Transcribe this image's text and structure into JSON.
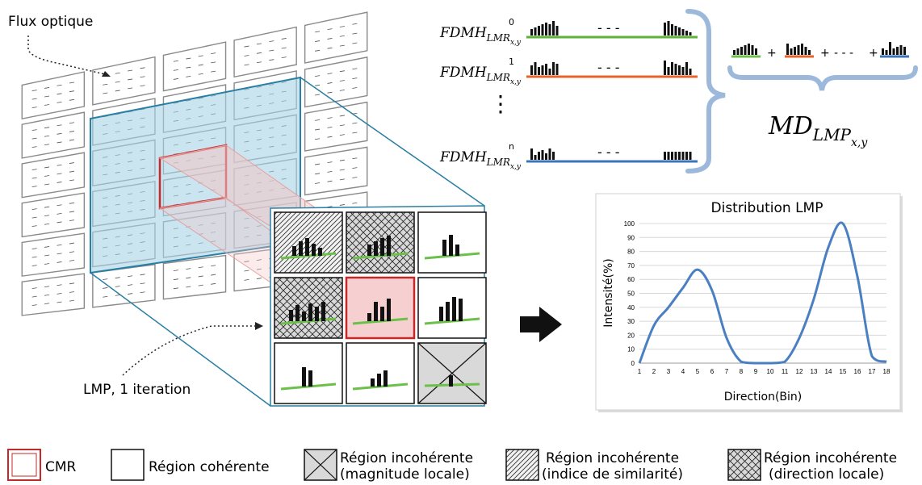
{
  "labels": {
    "optical_flow": "Flux optique",
    "lmp_iteration": "LMP, 1 iteration"
  },
  "fdmh": {
    "base": "FDMH",
    "sub": "LMR",
    "subsub": "x,y",
    "rows": [
      {
        "sup": "0",
        "color": "#5cb335"
      },
      {
        "sup": "1",
        "color": "#e8632b"
      },
      {
        "sup": "n",
        "color": "#3c74b8"
      }
    ],
    "ellipsis_mid": "- - -",
    "vertical_dots": "⋮",
    "sum_plus": "+",
    "sum_ellipsis": "- - -"
  },
  "md": {
    "base": "MD",
    "sub": "LMP",
    "subsub": "x,y"
  },
  "colors": {
    "grid_line": "#8a8a8a",
    "blue_region_fill": "#a9d4e6",
    "blue_region_stroke": "#2a7fa3",
    "cmr_red": "#c62828",
    "pink_fill": "#f3c7c7",
    "curve_blue": "#4a7fc1",
    "brace_blue": "#9cb9dc",
    "green_axis": "#6cc04a"
  },
  "chart_data": {
    "type": "line",
    "title": "Distribution  LMP",
    "xlabel": "Direction(Bin)",
    "ylabel": "Intensité(%)",
    "x": [
      1,
      2,
      3,
      4,
      5,
      6,
      7,
      8,
      9,
      10,
      11,
      12,
      13,
      14,
      15,
      16,
      17,
      18
    ],
    "series": [
      {
        "values": [
          0,
          27,
          40,
          54,
          67,
          52,
          18,
          1,
          0,
          0,
          1,
          18,
          46,
          83,
          100,
          62,
          5,
          1
        ]
      }
    ],
    "xlim": [
      1,
      18
    ],
    "ylim": [
      0,
      100
    ],
    "yticks": [
      0,
      10,
      20,
      30,
      40,
      50,
      60,
      70,
      80,
      90,
      100
    ],
    "grid": true
  },
  "legend": [
    {
      "label": "CMR",
      "kind": "cmr"
    },
    {
      "label": "Région cohérente",
      "kind": "plain"
    },
    {
      "label": "Région incohérente",
      "sub": "(magnitude locale)",
      "kind": "cross"
    },
    {
      "label": "Région incohérente",
      "sub": "(indice de similarité)",
      "kind": "diag"
    },
    {
      "label": "Région incohérente",
      "sub": "(direction locale)",
      "kind": "crosshatch"
    }
  ]
}
